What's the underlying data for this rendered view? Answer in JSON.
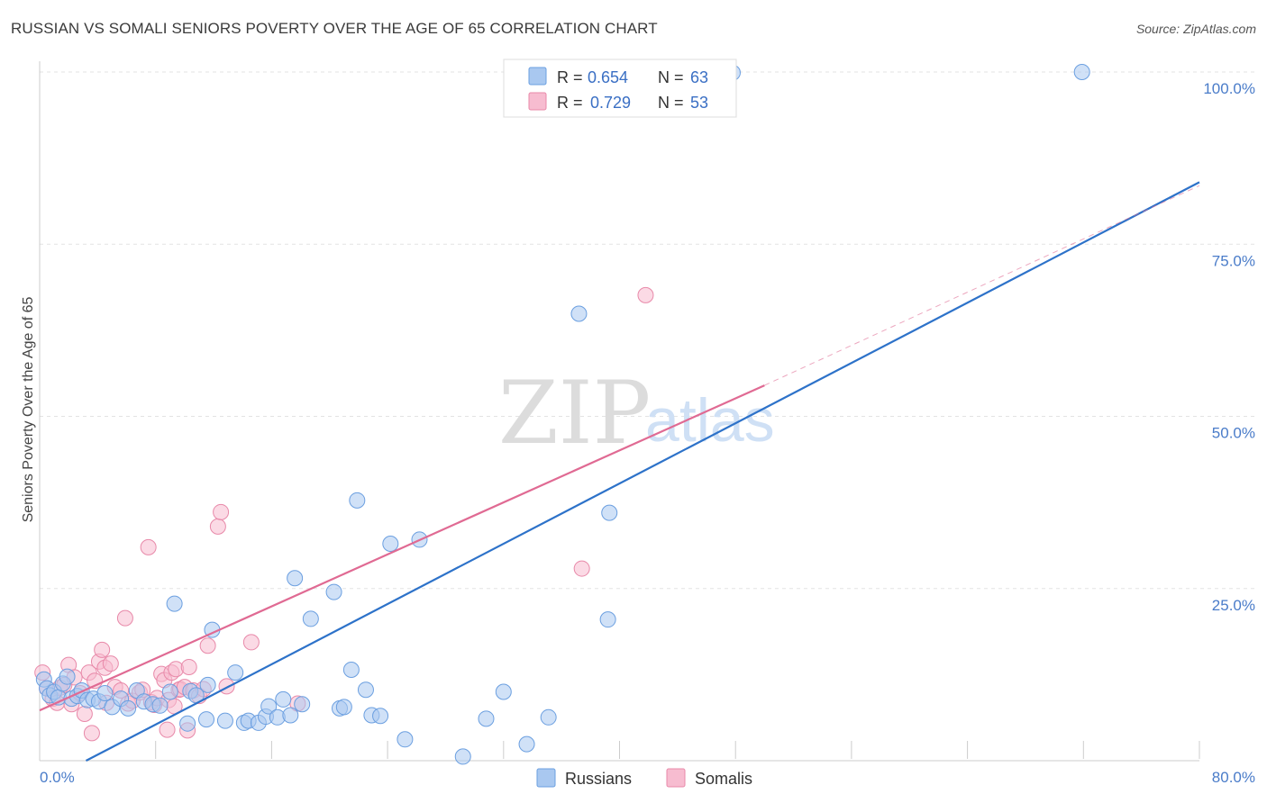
{
  "title": "RUSSIAN VS SOMALI SENIORS POVERTY OVER THE AGE OF 65 CORRELATION CHART",
  "source": "Source: ZipAtlas.com",
  "watermark": {
    "zip": "ZIP",
    "atlas": "atlas"
  },
  "colors": {
    "russians_fill": "#a9c8f0",
    "russians_stroke": "#6b9fe0",
    "russians_line": "#2d72c9",
    "somalis_fill": "#f7bcd0",
    "somalis_stroke": "#e889a9",
    "somalis_line": "#e06a93",
    "grid": "#e3e3e3",
    "tick_text": "#4a7cc9"
  },
  "legend": {
    "russians": {
      "r_label": "R =",
      "r_value": "0.654",
      "n_label": "N =",
      "n_value": "63"
    },
    "somalis": {
      "r_label": "R =",
      "r_value": "0.729",
      "n_label": "N =",
      "n_value": "53"
    }
  },
  "bottom_legend": [
    "Russians",
    "Somalis"
  ],
  "chart_data": {
    "type": "scatter",
    "title": "RUSSIAN VS SOMALI SENIORS POVERTY OVER THE AGE OF 65 CORRELATION CHART",
    "xlabel": "",
    "ylabel": "Seniors Poverty Over the Age of 65",
    "xlim": [
      0,
      80
    ],
    "ylim": [
      0,
      100
    ],
    "x_tick_labels": [
      "0.0%",
      "80.0%"
    ],
    "y_ticks": [
      25,
      50,
      75,
      100
    ],
    "y_tick_labels": [
      "25.0%",
      "50.0%",
      "75.0%",
      "100.0%"
    ],
    "series": [
      {
        "name": "Russians",
        "R": 0.654,
        "N": 63,
        "trend": {
          "x": [
            0,
            80
          ],
          "y": [
            -3.5,
            84
          ]
        },
        "points": [
          [
            0.3,
            11.8
          ],
          [
            0.5,
            10.5
          ],
          [
            0.7,
            9.5
          ],
          [
            1.0,
            10.0
          ],
          [
            1.3,
            9.2
          ],
          [
            1.6,
            11.2
          ],
          [
            1.9,
            12.2
          ],
          [
            2.2,
            9.0
          ],
          [
            2.6,
            9.4
          ],
          [
            2.9,
            10.2
          ],
          [
            3.3,
            8.8
          ],
          [
            3.7,
            9.0
          ],
          [
            4.1,
            8.6
          ],
          [
            4.5,
            9.8
          ],
          [
            5.0,
            7.8
          ],
          [
            5.6,
            9.0
          ],
          [
            6.1,
            7.6
          ],
          [
            6.7,
            10.2
          ],
          [
            7.2,
            8.6
          ],
          [
            7.8,
            8.2
          ],
          [
            8.3,
            8.0
          ],
          [
            9.0,
            10.0
          ],
          [
            9.3,
            22.8
          ],
          [
            10.4,
            10.1
          ],
          [
            10.8,
            9.5
          ],
          [
            10.2,
            5.4
          ],
          [
            11.6,
            11.0
          ],
          [
            11.9,
            19.0
          ],
          [
            11.5,
            6.0
          ],
          [
            12.8,
            5.8
          ],
          [
            13.5,
            12.8
          ],
          [
            14.1,
            5.5
          ],
          [
            14.4,
            5.8
          ],
          [
            15.1,
            5.5
          ],
          [
            15.6,
            6.4
          ],
          [
            15.8,
            7.9
          ],
          [
            16.4,
            6.3
          ],
          [
            16.8,
            8.9
          ],
          [
            17.3,
            6.6
          ],
          [
            17.6,
            26.5
          ],
          [
            18.1,
            8.2
          ],
          [
            18.7,
            20.6
          ],
          [
            20.3,
            24.5
          ],
          [
            20.7,
            7.6
          ],
          [
            21.0,
            7.8
          ],
          [
            21.5,
            13.2
          ],
          [
            21.9,
            37.8
          ],
          [
            22.5,
            10.3
          ],
          [
            22.9,
            6.6
          ],
          [
            23.5,
            6.5
          ],
          [
            24.2,
            31.5
          ],
          [
            25.2,
            3.1
          ],
          [
            26.2,
            32.1
          ],
          [
            29.2,
            0.6
          ],
          [
            30.8,
            6.1
          ],
          [
            32.0,
            10.0
          ],
          [
            33.6,
            2.4
          ],
          [
            35.1,
            6.3
          ],
          [
            37.2,
            64.9
          ],
          [
            39.2,
            20.5
          ],
          [
            39.3,
            36.0
          ],
          [
            47.8,
            99.9
          ],
          [
            71.9,
            100.0
          ]
        ]
      },
      {
        "name": "Somalis",
        "R": 0.729,
        "N": 53,
        "trend": {
          "x": [
            0,
            50
          ],
          "y": [
            7.3,
            54.5
          ]
        },
        "trend_dashed": {
          "x": [
            50,
            80
          ],
          "y": [
            54.5,
            83.5
          ]
        },
        "points": [
          [
            0.2,
            12.8
          ],
          [
            0.5,
            10.5
          ],
          [
            0.9,
            9.0
          ],
          [
            1.2,
            8.4
          ],
          [
            1.4,
            10.6
          ],
          [
            1.7,
            11.0
          ],
          [
            2.0,
            13.9
          ],
          [
            2.2,
            8.2
          ],
          [
            2.4,
            12.1
          ],
          [
            2.8,
            9.8
          ],
          [
            3.1,
            6.8
          ],
          [
            3.4,
            12.8
          ],
          [
            3.6,
            4.0
          ],
          [
            3.8,
            11.6
          ],
          [
            4.1,
            14.4
          ],
          [
            4.3,
            16.1
          ],
          [
            4.5,
            13.5
          ],
          [
            4.6,
            8.4
          ],
          [
            4.9,
            14.1
          ],
          [
            5.2,
            10.7
          ],
          [
            5.6,
            10.2
          ],
          [
            5.9,
            20.7
          ],
          [
            6.1,
            8.3
          ],
          [
            6.4,
            8.7
          ],
          [
            6.9,
            9.9
          ],
          [
            7.1,
            10.3
          ],
          [
            7.5,
            31.0
          ],
          [
            7.7,
            8.5
          ],
          [
            7.9,
            8.1
          ],
          [
            8.1,
            9.1
          ],
          [
            8.4,
            12.6
          ],
          [
            8.6,
            11.7
          ],
          [
            8.9,
            8.8
          ],
          [
            9.1,
            12.8
          ],
          [
            8.8,
            4.5
          ],
          [
            9.3,
            7.9
          ],
          [
            9.4,
            13.3
          ],
          [
            9.6,
            10.3
          ],
          [
            9.7,
            10.4
          ],
          [
            10.0,
            10.7
          ],
          [
            10.3,
            13.6
          ],
          [
            10.6,
            10.2
          ],
          [
            11.0,
            9.4
          ],
          [
            11.3,
            10.4
          ],
          [
            11.6,
            16.7
          ],
          [
            12.3,
            34.0
          ],
          [
            12.5,
            36.1
          ],
          [
            12.9,
            10.8
          ],
          [
            14.6,
            17.2
          ],
          [
            17.8,
            8.3
          ],
          [
            37.4,
            27.9
          ],
          [
            41.8,
            67.6
          ],
          [
            10.2,
            4.4
          ]
        ]
      }
    ]
  }
}
